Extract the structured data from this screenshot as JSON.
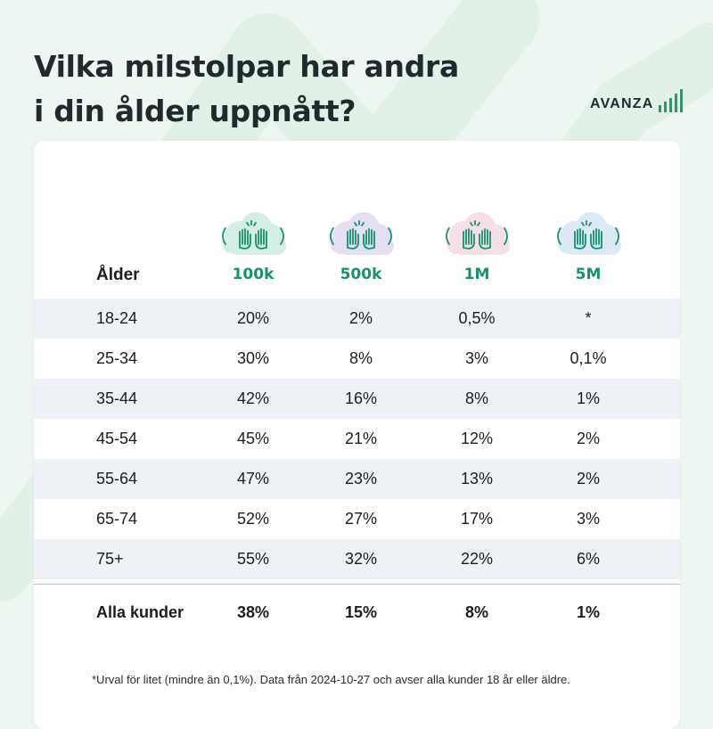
{
  "title_line1": "Vilka milstolpar har andra",
  "title_line2": "i din ålder uppnått?",
  "brand": {
    "name": "AVANZA",
    "color": "#1fa06b"
  },
  "accent_color": "#17906b",
  "chart_data": {
    "type": "table",
    "row_header": "Ålder",
    "columns": [
      {
        "label": "100k",
        "icon": "raised-hands-icon",
        "cloud_color": "#cfeee0"
      },
      {
        "label": "500k",
        "icon": "raised-hands-icon",
        "cloud_color": "#e2dcf3"
      },
      {
        "label": "1M",
        "icon": "raised-hands-icon",
        "cloud_color": "#f8dbe6"
      },
      {
        "label": "5M",
        "icon": "raised-hands-icon",
        "cloud_color": "#d8e8f6"
      }
    ],
    "rows": [
      {
        "age": "18-24",
        "values": [
          "20%",
          "2%",
          "0,5%",
          "*"
        ]
      },
      {
        "age": "25-34",
        "values": [
          "30%",
          "8%",
          "3%",
          "0,1%"
        ]
      },
      {
        "age": "35-44",
        "values": [
          "42%",
          "16%",
          "8%",
          "1%"
        ]
      },
      {
        "age": "45-54",
        "values": [
          "45%",
          "21%",
          "12%",
          "2%"
        ]
      },
      {
        "age": "55-64",
        "values": [
          "47%",
          "23%",
          "13%",
          "2%"
        ]
      },
      {
        "age": "65-74",
        "values": [
          "52%",
          "27%",
          "17%",
          "3%"
        ]
      },
      {
        "age": "75+",
        "values": [
          "55%",
          "32%",
          "22%",
          "6%"
        ]
      }
    ],
    "total": {
      "label": "Alla kunder",
      "values": [
        "38%",
        "15%",
        "8%",
        "1%"
      ]
    }
  },
  "footnote": "*Urval för litet (mindre än 0,1%). Data från 2024-10-27 och avser alla kunder 18 år eller äldre."
}
